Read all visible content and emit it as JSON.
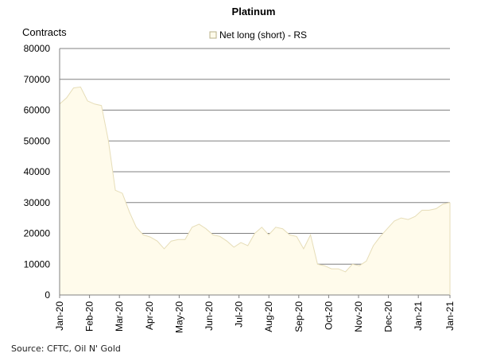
{
  "chart_data": {
    "type": "area",
    "title": "Platinum",
    "ylabel": "Contracts",
    "xlabel": "",
    "ylim": [
      0,
      80000
    ],
    "yticks": [
      0,
      10000,
      20000,
      30000,
      40000,
      50000,
      60000,
      70000,
      80000
    ],
    "xticks": [
      "Jan-20",
      "Feb-20",
      "Mar-20",
      "Apr-20",
      "May-20",
      "Jun-20",
      "Jul-20",
      "Aug-20",
      "Sep-20",
      "Oct-20",
      "Nov-20",
      "Dec-20",
      "Jan-21",
      "Jan-21"
    ],
    "grid": true,
    "legend_position": "top-center",
    "colors": {
      "fill": "#FFFBEB",
      "line": "#E6DDB8",
      "grid": "#808080",
      "axis": "#808080"
    },
    "series": [
      {
        "name": "Net long (short) - RS",
        "values": [
          62000,
          64000,
          67200,
          67500,
          63000,
          62000,
          61500,
          50000,
          34000,
          33000,
          27000,
          22000,
          19500,
          18800,
          17500,
          15000,
          17500,
          18000,
          18000,
          22000,
          23000,
          21500,
          19500,
          19000,
          17500,
          15500,
          17000,
          16000,
          20000,
          22000,
          19500,
          22000,
          21500,
          19500,
          19000,
          15000,
          19500,
          10000,
          9500,
          8500,
          8500,
          7500,
          10000,
          9500,
          11000,
          16000,
          19000,
          21500,
          24000,
          25000,
          24500,
          25500,
          27500,
          27500,
          28000,
          29500,
          30000
        ]
      }
    ]
  },
  "source": "Source: CFTC, Oil N' Gold"
}
